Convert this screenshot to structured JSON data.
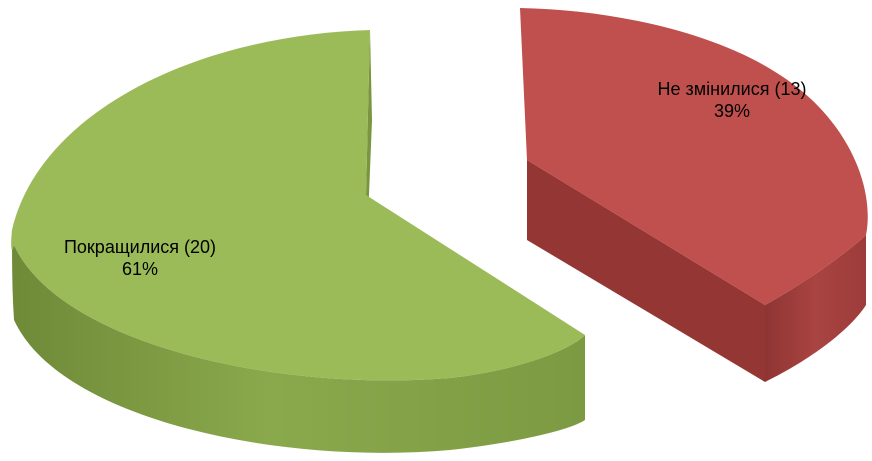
{
  "chart_data": {
    "type": "pie",
    "style": "3d-exploded",
    "title": "",
    "slices": [
      {
        "name": "Покращилися",
        "value": 20,
        "percent": "61%",
        "label": "Покращилися (20)",
        "color": "#9bbb59",
        "side_color": "#76923c"
      },
      {
        "name": "Не змінилися",
        "value": 13,
        "percent": "39%",
        "label": "Не змінилися (13)",
        "color": "#c0504d",
        "side_color": "#943634"
      }
    ]
  }
}
